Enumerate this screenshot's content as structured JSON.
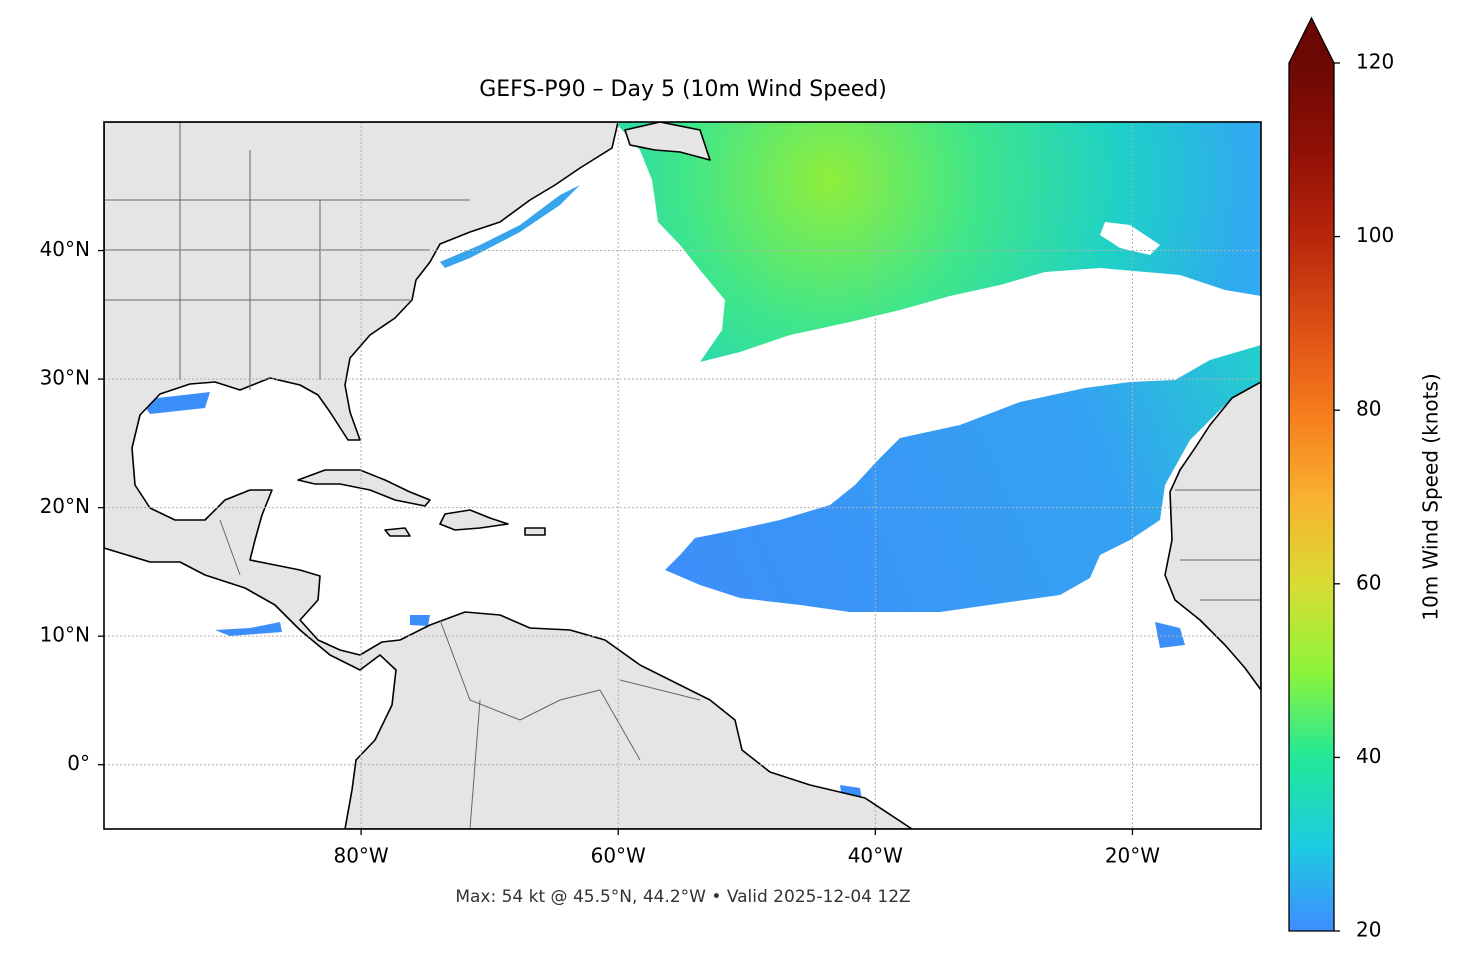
{
  "chart_data": {
    "type": "map",
    "title": "GEFS-P90 – Day 5 (10m Wind Speed)",
    "annotation": "Max: 54 kt @ 45.5°N, 44.2°W • Valid 2025-12-04 12Z",
    "xlim": [
      -100,
      -10
    ],
    "ylim": [
      -5,
      50
    ],
    "xticks": [
      {
        "value": -80,
        "label": "80°W"
      },
      {
        "value": -60,
        "label": "60°W"
      },
      {
        "value": -40,
        "label": "40°W"
      },
      {
        "value": -20,
        "label": "20°W"
      }
    ],
    "yticks": [
      {
        "value": 0,
        "label": "0°"
      },
      {
        "value": 10,
        "label": "10°N"
      },
      {
        "value": 20,
        "label": "20°N"
      },
      {
        "value": 30,
        "label": "30°N"
      },
      {
        "value": 40,
        "label": "40°N"
      }
    ],
    "grid": true,
    "colorbar": {
      "label": "10m Wind Speed (knots)",
      "lim": [
        20,
        120
      ],
      "ticks": [
        20,
        40,
        60,
        80,
        100,
        120
      ],
      "extend": "max",
      "colormap": [
        "#3f8cff",
        "#1ccde0",
        "#22e897",
        "#8ef43a",
        "#d9dc33",
        "#f9b030",
        "#f57a1c",
        "#dc4d14",
        "#b8260c",
        "#901006",
        "#6c0803"
      ]
    }
  }
}
